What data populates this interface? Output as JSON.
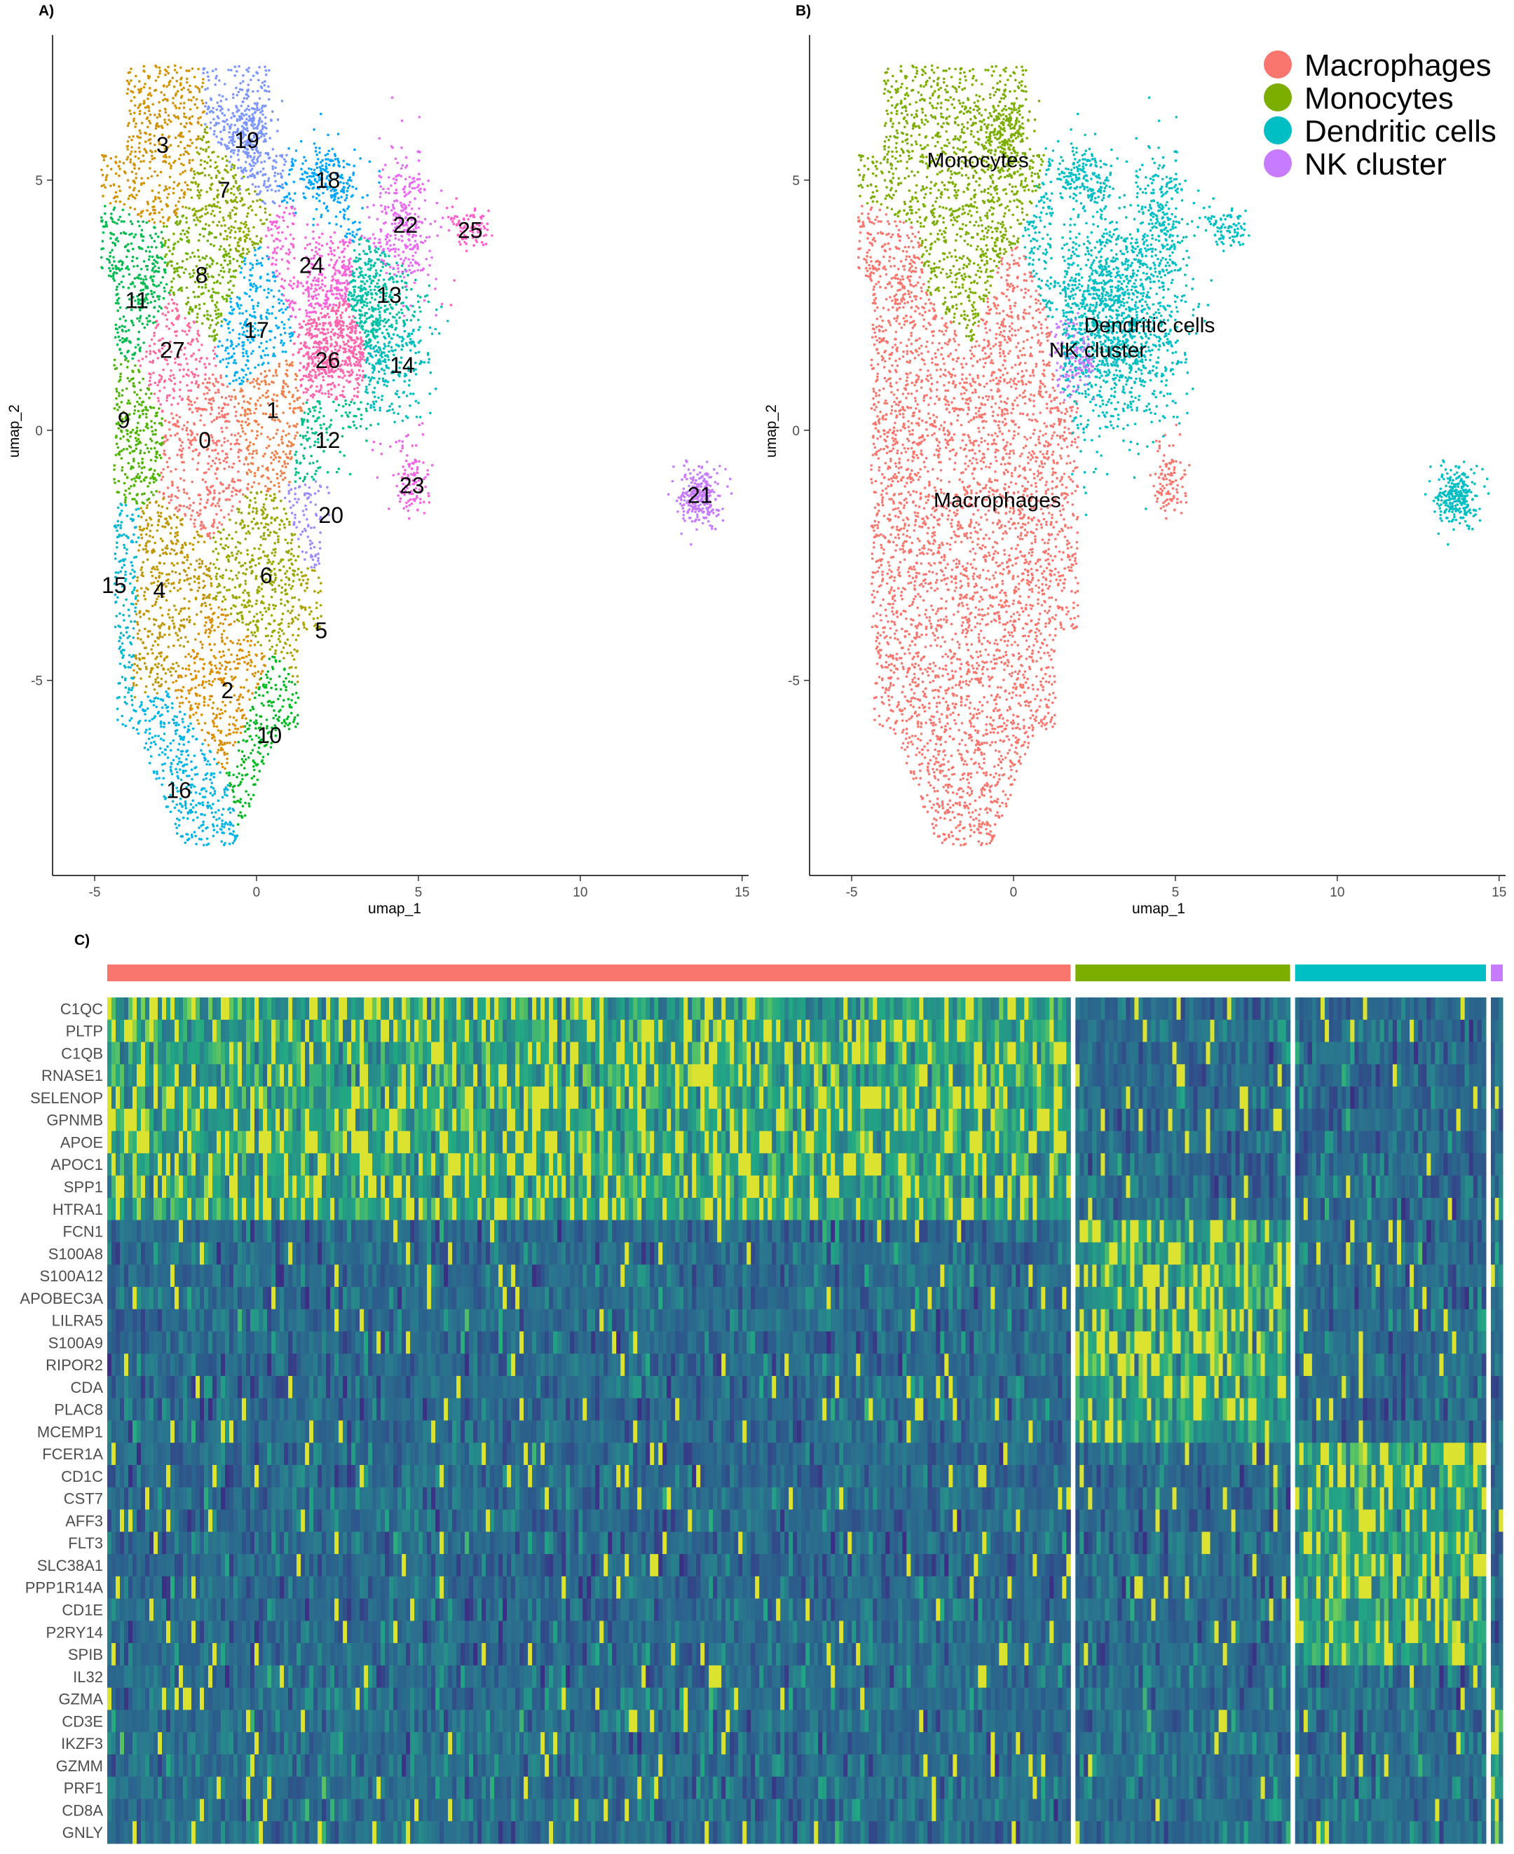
{
  "panels": {
    "a_label": "A)",
    "b_label": "B)",
    "c_label": "C)"
  },
  "axes": {
    "xlabel": "umap_1",
    "ylabel": "umap_2",
    "x_ticks": [
      "-5",
      "0",
      "5",
      "10",
      "15"
    ],
    "y_ticks": [
      "5",
      "0",
      "-5"
    ]
  },
  "chart_data": [
    {
      "type": "scatter",
      "panel": "A",
      "title": "",
      "xlabel": "umap_1",
      "ylabel": "umap_2",
      "xlim": [
        -6.3,
        15.2
      ],
      "ylim": [
        -8.9,
        7.9
      ],
      "grid": false,
      "x_ticks": [
        -5,
        0,
        5,
        10,
        15
      ],
      "y_ticks": [
        -5,
        0,
        5
      ],
      "palette": [
        "#F8766D",
        "#E88526",
        "#D39200",
        "#B79F00",
        "#93AA00",
        "#5EB300",
        "#00BA38",
        "#00BF74",
        "#00C19F",
        "#00BFC4",
        "#00B9E3",
        "#00ADFA",
        "#619CFF",
        "#AE87FF",
        "#DB72FB",
        "#F564E3",
        "#FF61C3",
        "#FF6C91"
      ],
      "clusters": [
        {
          "name": "0",
          "x": -1.6,
          "y": -0.2,
          "color": "#F8766D"
        },
        {
          "name": "1",
          "x": 0.5,
          "y": 0.4,
          "color": "#F0804A"
        },
        {
          "name": "2",
          "x": -0.9,
          "y": -5.2,
          "color": "#DB8E00"
        },
        {
          "name": "3",
          "x": -2.9,
          "y": 5.7,
          "color": "#D39200"
        },
        {
          "name": "4",
          "x": -3.0,
          "y": -3.2,
          "color": "#C09700"
        },
        {
          "name": "5",
          "x": 2.0,
          "y": -4.0,
          "color": "#AEA200"
        },
        {
          "name": "6",
          "x": 0.3,
          "y": -2.9,
          "color": "#9AA800"
        },
        {
          "name": "7",
          "x": -1.0,
          "y": 4.8,
          "color": "#8AAB00"
        },
        {
          "name": "8",
          "x": -1.7,
          "y": 3.1,
          "color": "#6FB000"
        },
        {
          "name": "9",
          "x": -4.1,
          "y": 0.2,
          "color": "#4DB400"
        },
        {
          "name": "10",
          "x": 0.4,
          "y": -6.1,
          "color": "#00B81F"
        },
        {
          "name": "11",
          "x": -3.7,
          "y": 2.6,
          "color": "#00BB4E"
        },
        {
          "name": "12",
          "x": 2.2,
          "y": -0.2,
          "color": "#00C089"
        },
        {
          "name": "13",
          "x": 4.1,
          "y": 2.7,
          "color": "#00C1A7"
        },
        {
          "name": "14",
          "x": 4.5,
          "y": 1.3,
          "color": "#00BDBF"
        },
        {
          "name": "15",
          "x": -4.4,
          "y": -3.1,
          "color": "#00B8D3"
        },
        {
          "name": "16",
          "x": -2.4,
          "y": -7.2,
          "color": "#00B4E6"
        },
        {
          "name": "17",
          "x": 0.0,
          "y": 2.0,
          "color": "#00AEF4"
        },
        {
          "name": "18",
          "x": 2.2,
          "y": 5.0,
          "color": "#00A6FF"
        },
        {
          "name": "19",
          "x": -0.3,
          "y": 5.8,
          "color": "#7C96FF"
        },
        {
          "name": "20",
          "x": 2.3,
          "y": -1.7,
          "color": "#9D8CFF"
        },
        {
          "name": "21",
          "x": 13.7,
          "y": -1.3,
          "color": "#C77CFF"
        },
        {
          "name": "22",
          "x": 4.6,
          "y": 4.1,
          "color": "#E76BF3"
        },
        {
          "name": "23",
          "x": 4.8,
          "y": -1.1,
          "color": "#F365E6"
        },
        {
          "name": "24",
          "x": 1.7,
          "y": 3.3,
          "color": "#FA62DB"
        },
        {
          "name": "25",
          "x": 6.6,
          "y": 4.0,
          "color": "#FF61C9"
        },
        {
          "name": "26",
          "x": 2.2,
          "y": 1.4,
          "color": "#FF65AC"
        },
        {
          "name": "27",
          "x": -2.6,
          "y": 1.6,
          "color": "#FF6A98"
        }
      ]
    },
    {
      "type": "scatter",
      "panel": "B",
      "title": "",
      "xlabel": "umap_1",
      "ylabel": "umap_2",
      "xlim": [
        -6.3,
        15.2
      ],
      "ylim": [
        -8.9,
        7.9
      ],
      "grid": false,
      "x_ticks": [
        -5,
        0,
        5,
        10,
        15
      ],
      "y_ticks": [
        -5,
        0,
        5
      ],
      "legend_position": "top-right",
      "series": [
        {
          "name": "Macrophages",
          "color": "#F8766D",
          "label_x": -0.5,
          "label_y": -1.4
        },
        {
          "name": "Monocytes",
          "color": "#7CAE00",
          "label_x": -1.1,
          "label_y": 5.4
        },
        {
          "name": "Dendritic cells",
          "color": "#00BFC4",
          "label_x": 4.2,
          "label_y": 2.1
        },
        {
          "name": "NK cluster",
          "color": "#C77CFF",
          "label_x": 2.6,
          "label_y": 1.6
        }
      ]
    },
    {
      "type": "heatmap",
      "panel": "C",
      "title": "",
      "groups": [
        {
          "name": "Macrophages",
          "color": "#F8766D",
          "fraction": 0.646
        },
        {
          "name": "Monocytes",
          "color": "#7CAE00",
          "fraction": 0.144
        },
        {
          "name": "Dendritic cells",
          "color": "#00BFC4",
          "fraction": 0.128
        },
        {
          "name": "NK cluster",
          "color": "#C77CFF",
          "fraction": 0.008
        }
      ],
      "genes": [
        "C1QC",
        "PLTP",
        "C1QB",
        "RNASE1",
        "SELENOP",
        "GPNMB",
        "APOE",
        "APOC1",
        "SPP1",
        "HTRA1",
        "FCN1",
        "S100A8",
        "S100A12",
        "APOBEC3A",
        "LILRA5",
        "S100A9",
        "RIPOR2",
        "CDA",
        "PLAC8",
        "MCEMP1",
        "FCER1A",
        "CD1C",
        "CST7",
        "AFF3",
        "FLT3",
        "SLC38A1",
        "PPP1R14A",
        "CD1E",
        "P2RY14",
        "SPIB",
        "IL32",
        "GZMA",
        "CD3E",
        "IKZF3",
        "GZMM",
        "PRF1",
        "CD8A",
        "GNLY"
      ],
      "gene_markers": [
        0,
        0,
        0,
        0,
        0,
        0,
        0,
        0,
        0,
        0,
        1,
        1,
        1,
        1,
        1,
        1,
        1,
        1,
        1,
        1,
        2,
        2,
        2,
        2,
        2,
        2,
        2,
        2,
        2,
        2,
        3,
        3,
        3,
        3,
        3,
        3,
        3,
        3
      ],
      "colormap": [
        "#3B2F83",
        "#2C5C8C",
        "#2A788E",
        "#22A884",
        "#7AD151",
        "#FDE725"
      ]
    }
  ]
}
